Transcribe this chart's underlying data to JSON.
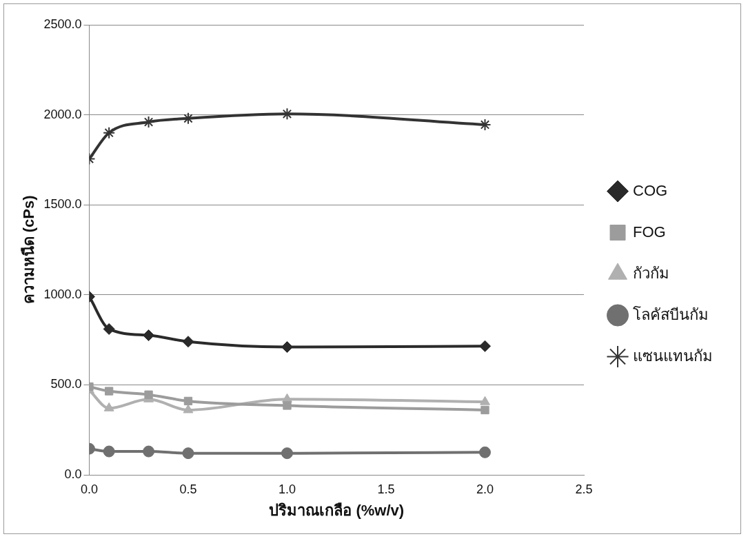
{
  "chart_data": {
    "type": "line",
    "xlabel": "ปริมาณเกลือ (%w/v)",
    "ylabel": "ความหนืด (cPs)",
    "x": [
      0,
      0.1,
      0.3,
      0.5,
      1.0,
      2.0
    ],
    "xlim": [
      0,
      2.5
    ],
    "xticks": [
      {
        "value": 0,
        "label": "0.0"
      },
      {
        "value": 0.5,
        "label": "0.5"
      },
      {
        "value": 1,
        "label": "1.0"
      },
      {
        "value": 1.5,
        "label": "1.5"
      },
      {
        "value": 2,
        "label": "2.0"
      },
      {
        "value": 2.5,
        "label": "2.5"
      }
    ],
    "ylim": [
      0,
      2500
    ],
    "yticks": [
      {
        "value": 0,
        "label": "0.0"
      },
      {
        "value": 500,
        "label": "500.0"
      },
      {
        "value": 1000,
        "label": "1000.0"
      },
      {
        "value": 1500,
        "label": "1500.0"
      },
      {
        "value": 2000,
        "label": "2000.0"
      },
      {
        "value": 2500,
        "label": "2500.0"
      }
    ],
    "grid": "y",
    "legend": "right",
    "series": [
      {
        "name": "COG",
        "color": "#2a2a2a",
        "marker": "diamond",
        "values": [
          990,
          810,
          775,
          740,
          710,
          715
        ]
      },
      {
        "name": "FOG",
        "color": "#9c9c9c",
        "marker": "square",
        "values": [
          490,
          465,
          445,
          410,
          385,
          360
        ]
      },
      {
        "name": "กัวกัม",
        "color": "#b0b0b0",
        "marker": "triangle",
        "values": [
          470,
          370,
          420,
          360,
          420,
          405
        ]
      },
      {
        "name": "โลคัสบีนกัม",
        "color": "#707070",
        "marker": "circle",
        "values": [
          145,
          130,
          130,
          120,
          120,
          125
        ]
      },
      {
        "name": "แซนแทนกัม",
        "color": "#333333",
        "marker": "cross",
        "values": [
          1755,
          1900,
          1960,
          1980,
          2005,
          1945
        ]
      }
    ]
  }
}
